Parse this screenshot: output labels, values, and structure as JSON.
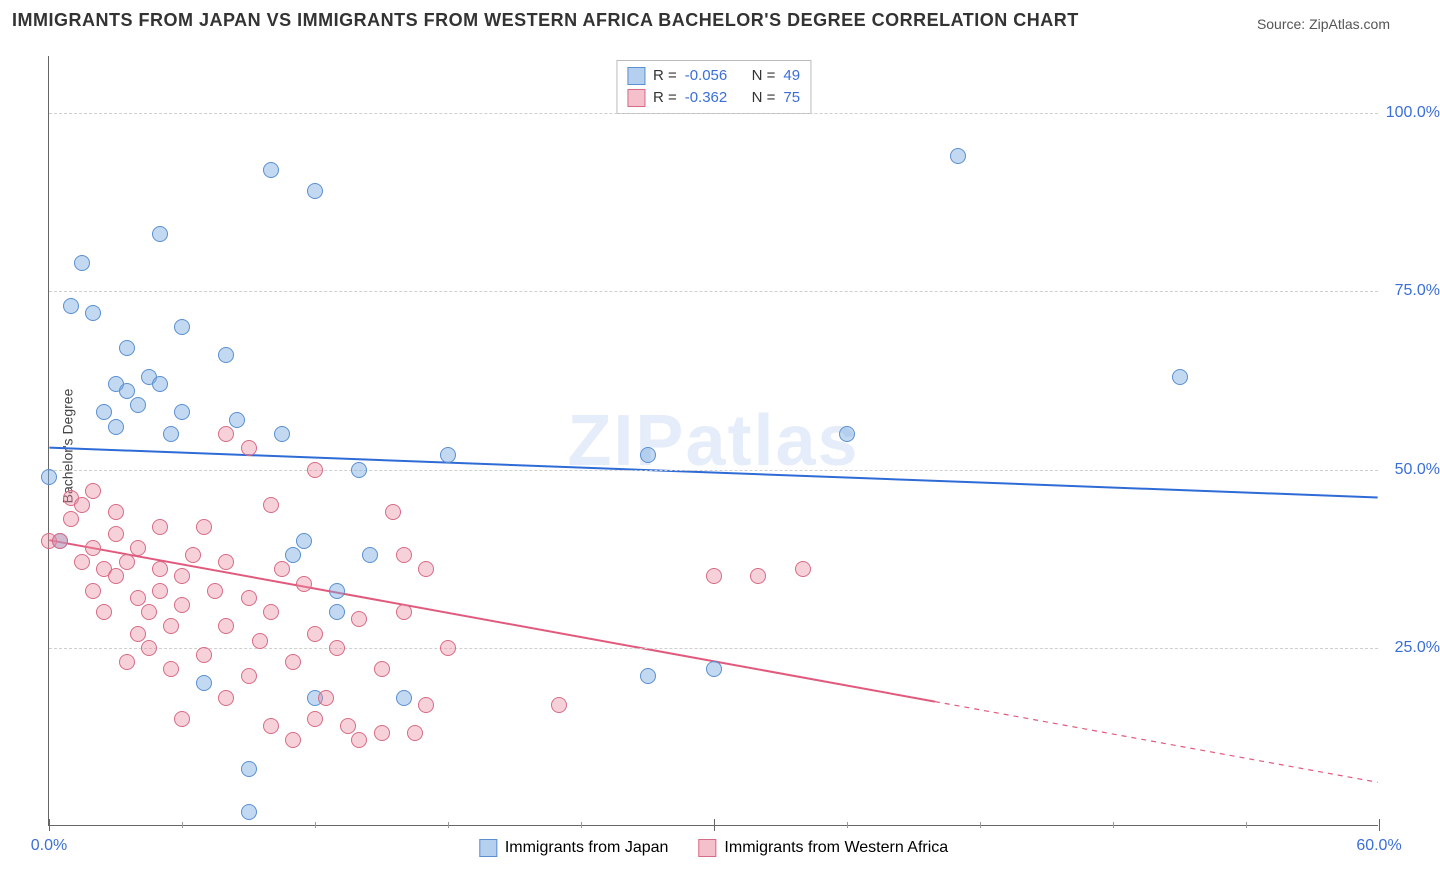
{
  "title": "IMMIGRANTS FROM JAPAN VS IMMIGRANTS FROM WESTERN AFRICA BACHELOR'S DEGREE CORRELATION CHART",
  "source": "Source: ZipAtlas.com",
  "ylabel": "Bachelor's Degree",
  "watermark": "ZIPatlas",
  "xlim": [
    0,
    60
  ],
  "ylim": [
    0,
    108
  ],
  "xticks_major": [
    0,
    30,
    60
  ],
  "xticks_minor": [
    6,
    12,
    18,
    24,
    36,
    42,
    48,
    54
  ],
  "xtick_labels": {
    "0": "0.0%",
    "60": "60.0%"
  },
  "yticks": [
    25,
    50,
    75,
    100
  ],
  "ytick_labels": {
    "25": "25.0%",
    "50": "50.0%",
    "75": "75.0%",
    "100": "100.0%"
  },
  "grid_color": "#cfcfcf",
  "tick_label_color": "#3a6fd8",
  "series": [
    {
      "label": "Immigrants from Japan",
      "r": "-0.056",
      "n": "49",
      "color_fill": "rgba(120,170,225,0.45)",
      "color_stroke": "#5a8fd0",
      "line_color": "#2e6bd6",
      "line_width": 2,
      "trend": {
        "x1": 0,
        "y1": 53,
        "x2": 60,
        "y2": 46,
        "solid_to_x": 60
      },
      "points": [
        [
          0,
          49
        ],
        [
          0.5,
          40
        ],
        [
          1,
          73
        ],
        [
          1.5,
          79
        ],
        [
          2,
          72
        ],
        [
          2.5,
          58
        ],
        [
          3,
          56
        ],
        [
          3,
          62
        ],
        [
          3.5,
          61
        ],
        [
          3.5,
          67
        ],
        [
          4,
          59
        ],
        [
          4.5,
          63
        ],
        [
          5,
          62
        ],
        [
          5,
          83
        ],
        [
          5.5,
          55
        ],
        [
          6,
          58
        ],
        [
          6,
          70
        ],
        [
          7,
          20
        ],
        [
          8,
          66
        ],
        [
          8.5,
          57
        ],
        [
          9,
          2
        ],
        [
          9,
          8
        ],
        [
          10,
          92
        ],
        [
          10.5,
          55
        ],
        [
          11,
          38
        ],
        [
          11.5,
          40
        ],
        [
          12,
          89
        ],
        [
          12,
          18
        ],
        [
          13,
          33
        ],
        [
          13,
          30
        ],
        [
          14,
          50
        ],
        [
          14.5,
          38
        ],
        [
          16,
          18
        ],
        [
          18,
          52
        ],
        [
          27,
          52
        ],
        [
          27,
          21
        ],
        [
          30,
          22
        ],
        [
          36,
          55
        ],
        [
          41,
          94
        ],
        [
          51,
          63
        ]
      ]
    },
    {
      "label": "Immigrants from Western Africa",
      "r": "-0.362",
      "n": "75",
      "color_fill": "rgba(235,140,160,0.40)",
      "color_stroke": "#d76b86",
      "line_color": "#e15a7d",
      "line_width": 2,
      "trend": {
        "x1": 0,
        "y1": 40,
        "x2": 60,
        "y2": 6,
        "solid_to_x": 40
      },
      "points": [
        [
          0,
          40
        ],
        [
          0.5,
          40
        ],
        [
          1,
          46
        ],
        [
          1,
          43
        ],
        [
          1.5,
          37
        ],
        [
          1.5,
          45
        ],
        [
          2,
          33
        ],
        [
          2,
          39
        ],
        [
          2,
          47
        ],
        [
          2.5,
          36
        ],
        [
          2.5,
          30
        ],
        [
          3,
          35
        ],
        [
          3,
          41
        ],
        [
          3,
          44
        ],
        [
          3.5,
          23
        ],
        [
          3.5,
          37
        ],
        [
          4,
          27
        ],
        [
          4,
          32
        ],
        [
          4,
          39
        ],
        [
          4.5,
          25
        ],
        [
          4.5,
          30
        ],
        [
          5,
          33
        ],
        [
          5,
          36
        ],
        [
          5,
          42
        ],
        [
          5.5,
          22
        ],
        [
          5.5,
          28
        ],
        [
          6,
          15
        ],
        [
          6,
          31
        ],
        [
          6,
          35
        ],
        [
          6.5,
          38
        ],
        [
          7,
          24
        ],
        [
          7,
          42
        ],
        [
          7.5,
          33
        ],
        [
          8,
          18
        ],
        [
          8,
          28
        ],
        [
          8,
          37
        ],
        [
          8,
          55
        ],
        [
          9,
          21
        ],
        [
          9,
          32
        ],
        [
          9,
          53
        ],
        [
          9.5,
          26
        ],
        [
          10,
          14
        ],
        [
          10,
          30
        ],
        [
          10,
          45
        ],
        [
          10.5,
          36
        ],
        [
          11,
          12
        ],
        [
          11,
          23
        ],
        [
          11.5,
          34
        ],
        [
          12,
          15
        ],
        [
          12,
          27
        ],
        [
          12,
          50
        ],
        [
          12.5,
          18
        ],
        [
          13,
          25
        ],
        [
          13.5,
          14
        ],
        [
          14,
          29
        ],
        [
          14,
          12
        ],
        [
          15,
          13
        ],
        [
          15,
          22
        ],
        [
          15.5,
          44
        ],
        [
          16,
          30
        ],
        [
          16,
          38
        ],
        [
          16.5,
          13
        ],
        [
          17,
          17
        ],
        [
          17,
          36
        ],
        [
          18,
          25
        ],
        [
          23,
          17
        ],
        [
          30,
          35
        ],
        [
          32,
          35
        ],
        [
          34,
          36
        ]
      ]
    }
  ]
}
